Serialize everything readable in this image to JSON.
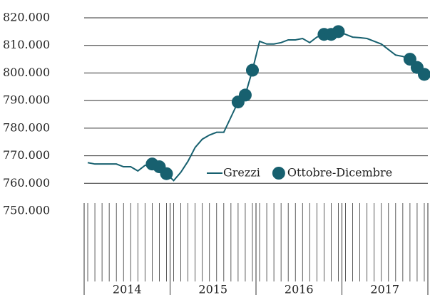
{
  "chart_data": {
    "type": "line",
    "categories": [
      null,
      null,
      null,
      null,
      null,
      null,
      null,
      null,
      null,
      null,
      null,
      null,
      null,
      null,
      null,
      null,
      null,
      null,
      null,
      null,
      null,
      null,
      null,
      null,
      null,
      null,
      null,
      null,
      null,
      null,
      null,
      null,
      null,
      null,
      null,
      null,
      null,
      null,
      null,
      null,
      null,
      null,
      null,
      null,
      null,
      null,
      null,
      null
    ],
    "x_groups": [
      "2014",
      "2015",
      "2016",
      "2017"
    ],
    "series": [
      {
        "name": "Grezzi",
        "color": "#17606f",
        "style": "line",
        "values": [
          767500,
          767000,
          767000,
          767000,
          767000,
          766000,
          766000,
          764500,
          766500,
          767000,
          766000,
          763500,
          761000,
          764000,
          768000,
          773000,
          776000,
          777500,
          778500,
          778500,
          784000,
          789500,
          792000,
          801000,
          811500,
          810500,
          810500,
          811000,
          812000,
          812000,
          812500,
          811000,
          813000,
          814000,
          814000,
          815000,
          814000,
          813000,
          812800,
          812500,
          811500,
          810500,
          808500,
          806500,
          806000,
          805000,
          802000,
          799500
        ]
      },
      {
        "name": "Ottobre-Dicembre",
        "color": "#17606f",
        "style": "marker",
        "values": [
          null,
          null,
          null,
          null,
          null,
          null,
          null,
          null,
          null,
          767000,
          766000,
          763500,
          null,
          null,
          null,
          null,
          null,
          null,
          null,
          null,
          null,
          789500,
          792000,
          801000,
          null,
          null,
          null,
          null,
          null,
          null,
          null,
          null,
          null,
          814000,
          814000,
          815000,
          null,
          null,
          null,
          null,
          null,
          null,
          null,
          null,
          null,
          805000,
          802000,
          799500
        ]
      }
    ],
    "ylim": [
      750000,
      820000
    ],
    "yticks": [
      {
        "value": 750000,
        "label": "750.000"
      },
      {
        "value": 760000,
        "label": "760.000"
      },
      {
        "value": 770000,
        "label": "770.000"
      },
      {
        "value": 780000,
        "label": "780.000"
      },
      {
        "value": 790000,
        "label": "790.000"
      },
      {
        "value": 800000,
        "label": "800.000"
      },
      {
        "value": 810000,
        "label": "810.000"
      },
      {
        "value": 820000,
        "label": "820.000"
      }
    ],
    "grid": true,
    "legend": "lower right"
  }
}
